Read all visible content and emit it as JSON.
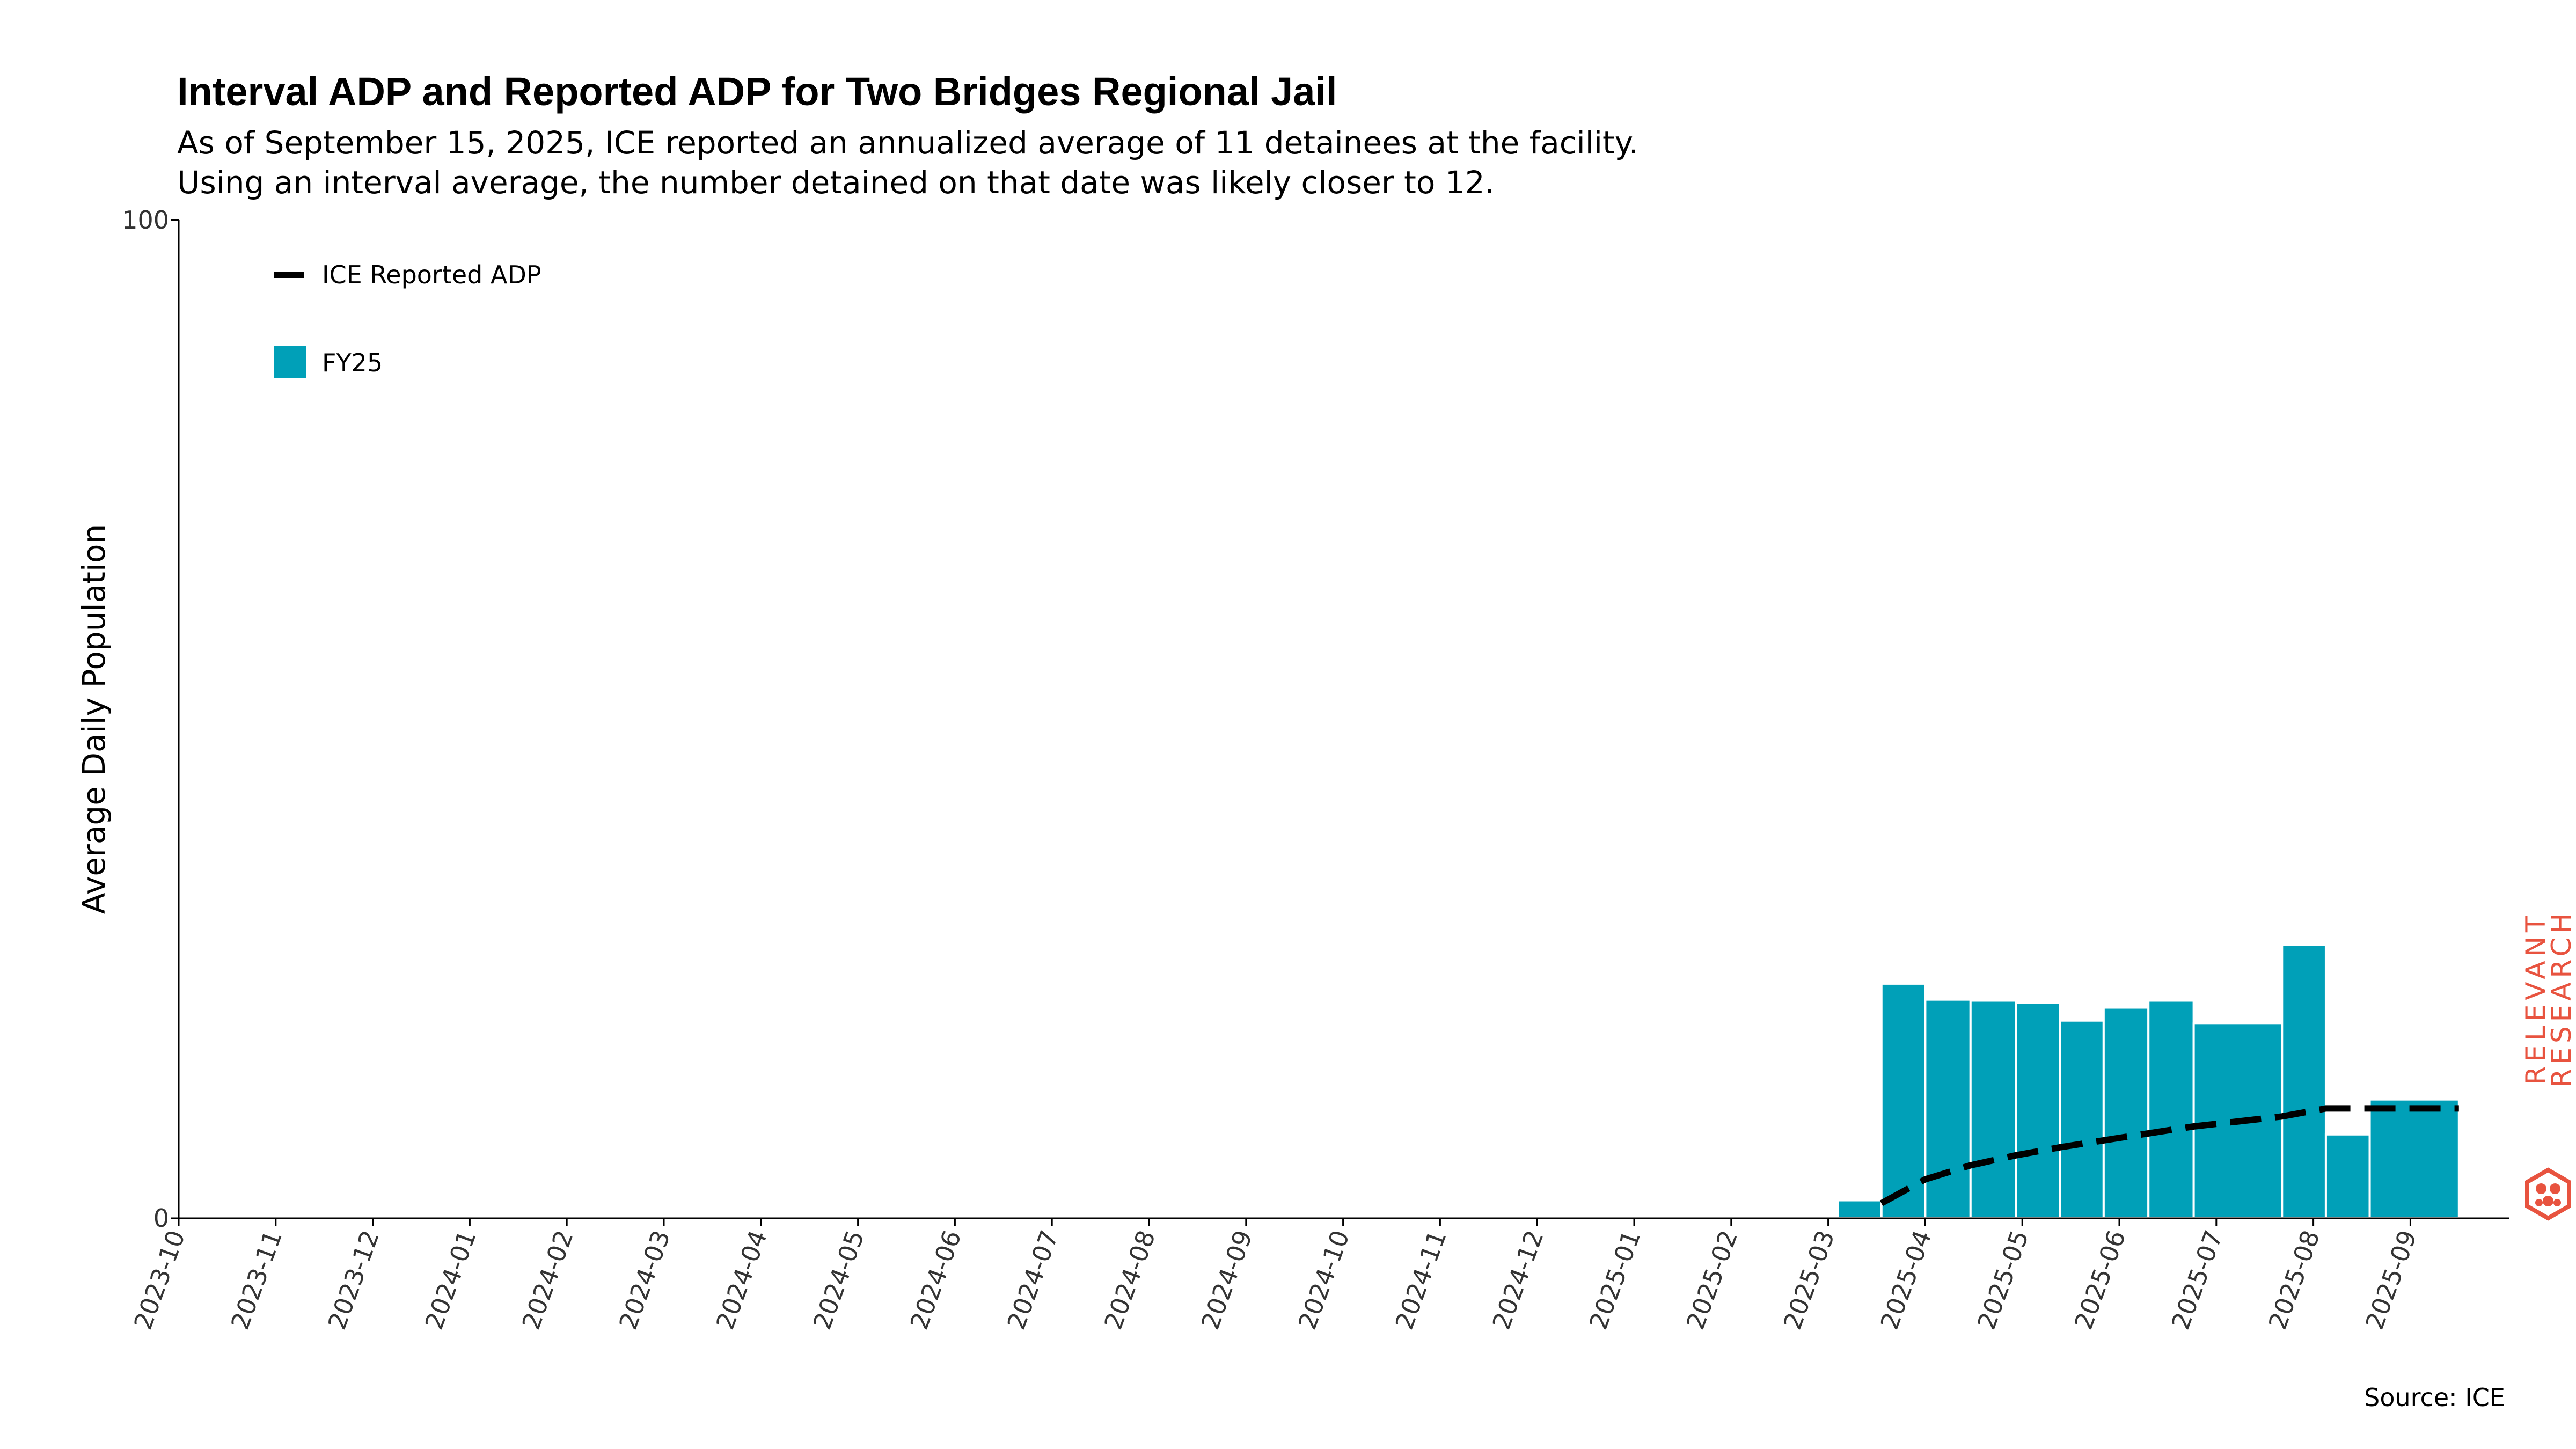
{
  "chart_data": {
    "type": "bar",
    "title": "Interval ADP and Reported ADP for Two Bridges Regional Jail",
    "subtitle": [
      "As of September 15, 2025, ICE reported an annualized average of 11 detainees at the facility.",
      "Using an interval average, the number detained on that date was likely closer to 12."
    ],
    "xlabel": "",
    "ylabel": "Average Daily Population",
    "ylim": [
      0,
      100
    ],
    "yticks": [
      "0",
      "100"
    ],
    "xlim": [
      "2023-10-01",
      "2025-09-30"
    ],
    "xticks": [
      "2023-10",
      "2023-11",
      "2023-12",
      "2024-01",
      "2024-02",
      "2024-03",
      "2024-04",
      "2024-05",
      "2024-06",
      "2024-07",
      "2024-08",
      "2024-09",
      "2024-10",
      "2024-11",
      "2024-12",
      "2025-01",
      "2025-02",
      "2025-03",
      "2025-04",
      "2025-05",
      "2025-06",
      "2025-07",
      "2025-08",
      "2025-09"
    ],
    "grid": false,
    "legend_position": "top-left",
    "legend": [
      {
        "label": "ICE Reported ADP",
        "kind": "dashed-line",
        "color": "#000000"
      },
      {
        "label": "FY25",
        "kind": "bar",
        "color": "#00a0b8"
      }
    ],
    "series": [
      {
        "name": "FY25",
        "type": "bar",
        "color": "#00a0b8",
        "bars": [
          {
            "start": "2025-03-04",
            "end": "2025-03-18",
            "value": 1.8
          },
          {
            "start": "2025-03-18",
            "end": "2025-04-01",
            "value": 23.5
          },
          {
            "start": "2025-04-01",
            "end": "2025-04-15",
            "value": 21.9
          },
          {
            "start": "2025-04-15",
            "end": "2025-04-29",
            "value": 21.8
          },
          {
            "start": "2025-04-29",
            "end": "2025-05-13",
            "value": 21.6
          },
          {
            "start": "2025-05-13",
            "end": "2025-05-27",
            "value": 19.8
          },
          {
            "start": "2025-05-27",
            "end": "2025-06-10",
            "value": 21.1
          },
          {
            "start": "2025-06-10",
            "end": "2025-06-24",
            "value": 21.8
          },
          {
            "start": "2025-06-24",
            "end": "2025-07-22",
            "value": 19.5
          },
          {
            "start": "2025-07-22",
            "end": "2025-08-05",
            "value": 27.4
          },
          {
            "start": "2025-08-05",
            "end": "2025-08-19",
            "value": 8.4
          },
          {
            "start": "2025-08-19",
            "end": "2025-09-16",
            "value": 11.9
          }
        ]
      },
      {
        "name": "ICE Reported ADP",
        "type": "line",
        "style": "dashed",
        "color": "#000000",
        "points": [
          {
            "x": "2025-03-18",
            "y": 1.5
          },
          {
            "x": "2025-04-01",
            "y": 3.9
          },
          {
            "x": "2025-04-15",
            "y": 5.3
          },
          {
            "x": "2025-04-29",
            "y": 6.3
          },
          {
            "x": "2025-05-13",
            "y": 7.1
          },
          {
            "x": "2025-05-27",
            "y": 7.8
          },
          {
            "x": "2025-06-10",
            "y": 8.5
          },
          {
            "x": "2025-06-24",
            "y": 9.2
          },
          {
            "x": "2025-07-08",
            "y": 9.7
          },
          {
            "x": "2025-07-22",
            "y": 10.2
          },
          {
            "x": "2025-08-05",
            "y": 11.0
          },
          {
            "x": "2025-08-19",
            "y": 11.0
          },
          {
            "x": "2025-09-02",
            "y": 11.0
          },
          {
            "x": "2025-09-16",
            "y": 11.0
          }
        ]
      }
    ]
  },
  "source": "Source: ICE",
  "logo": {
    "lines": [
      "RELEVANT",
      "RESEARCH"
    ],
    "color": "#e8533f"
  }
}
